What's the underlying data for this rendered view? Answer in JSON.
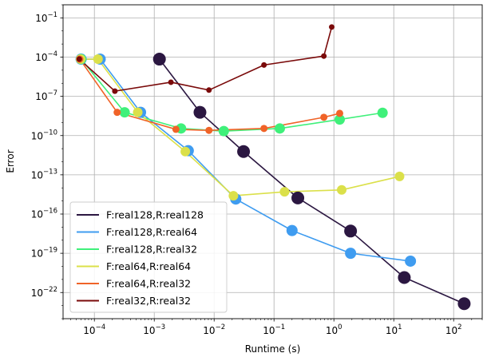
{
  "chart_data": {
    "type": "line",
    "xlabel": "Runtime (s)",
    "ylabel": "Error",
    "xscale": "log",
    "yscale": "log",
    "xlim": [
      3e-05,
      300
    ],
    "ylim": [
      1e-24,
      1.0
    ],
    "grid": true,
    "legend_position": "lower-left",
    "x_ticks": [
      {
        "value": 0.0001,
        "mantissa": "10",
        "exp": "−4"
      },
      {
        "value": 0.001,
        "mantissa": "10",
        "exp": "−3"
      },
      {
        "value": 0.01,
        "mantissa": "10",
        "exp": "−2"
      },
      {
        "value": 0.1,
        "mantissa": "10",
        "exp": "−1"
      },
      {
        "value": 1,
        "mantissa": "10",
        "exp": "0"
      },
      {
        "value": 10,
        "mantissa": "10",
        "exp": "1"
      },
      {
        "value": 100,
        "mantissa": "10",
        "exp": "2"
      }
    ],
    "y_ticks": [
      {
        "value": 1e-22,
        "mantissa": "10",
        "exp": "−22"
      },
      {
        "value": 1e-19,
        "mantissa": "10",
        "exp": "−19"
      },
      {
        "value": 1e-16,
        "mantissa": "10",
        "exp": "−16"
      },
      {
        "value": 1e-13,
        "mantissa": "10",
        "exp": "−13"
      },
      {
        "value": 1e-10,
        "mantissa": "10",
        "exp": "−10"
      },
      {
        "value": 1e-07,
        "mantissa": "10",
        "exp": "−7"
      },
      {
        "value": 0.0001,
        "mantissa": "10",
        "exp": "−4"
      },
      {
        "value": 0.1,
        "mantissa": "10",
        "exp": "−1"
      }
    ],
    "series": [
      {
        "name": "F:real128,R:real128",
        "color": "#2b1741",
        "marker_size": 8,
        "points": [
          {
            "x": 0.00122,
            "y": 7e-05
          },
          {
            "x": 0.0058,
            "y": 6e-09
          },
          {
            "x": 0.031,
            "y": 6e-12
          },
          {
            "x": 0.25,
            "y": 1.7e-15
          },
          {
            "x": 1.9,
            "y": 5e-18
          },
          {
            "x": 15,
            "y": 1.4e-21
          },
          {
            "x": 150,
            "y": 1.4e-23
          }
        ]
      },
      {
        "name": "F:real128,R:real64",
        "color": "#3f9cf0",
        "marker_size": 7,
        "points": [
          {
            "x": 6e-05,
            "y": 7e-05
          },
          {
            "x": 0.000125,
            "y": 7e-05
          },
          {
            "x": 0.00059,
            "y": 6e-09
          },
          {
            "x": 0.0037,
            "y": 7e-12
          },
          {
            "x": 0.023,
            "y": 1.4e-15
          },
          {
            "x": 0.2,
            "y": 5.5e-18
          },
          {
            "x": 1.9,
            "y": 1e-19
          },
          {
            "x": 19,
            "y": 2.5e-20
          }
        ]
      },
      {
        "name": "F:real128,R:real32",
        "color": "#3ff07a",
        "marker_size": 6.5,
        "points": [
          {
            "x": 6e-05,
            "y": 7e-05
          },
          {
            "x": 0.00032,
            "y": 6e-09
          },
          {
            "x": 0.0028,
            "y": 3.5e-10
          },
          {
            "x": 0.0145,
            "y": 2.2e-10
          },
          {
            "x": 0.125,
            "y": 3.5e-10
          },
          {
            "x": 1.25,
            "y": 1.7e-09
          },
          {
            "x": 6.5,
            "y": 5.5e-09
          }
        ]
      },
      {
        "name": "F:real64,R:real64",
        "color": "#dbe04a",
        "marker_size": 6,
        "points": [
          {
            "x": 5.9e-05,
            "y": 7e-05
          },
          {
            "x": 0.000115,
            "y": 7e-05
          },
          {
            "x": 0.00053,
            "y": 6e-09
          },
          {
            "x": 0.0033,
            "y": 6e-12
          },
          {
            "x": 0.021,
            "y": 2.5e-15
          },
          {
            "x": 0.15,
            "y": 5e-15
          },
          {
            "x": 1.35,
            "y": 7e-15
          },
          {
            "x": 12.5,
            "y": 7.5e-14
          }
        ]
      },
      {
        "name": "F:real64,R:real32",
        "color": "#f06328",
        "marker_size": 4.5,
        "points": [
          {
            "x": 5.7e-05,
            "y": 7e-05
          },
          {
            "x": 0.00024,
            "y": 6e-09
          },
          {
            "x": 0.0023,
            "y": 3e-10
          },
          {
            "x": 0.0082,
            "y": 2.5e-10
          },
          {
            "x": 0.068,
            "y": 3.5e-10
          },
          {
            "x": 0.68,
            "y": 2.5e-09
          },
          {
            "x": 1.25,
            "y": 5e-09
          }
        ]
      },
      {
        "name": "F:real32,R:real32",
        "color": "#7a0a0a",
        "marker_size": 3.5,
        "points": [
          {
            "x": 5.6e-05,
            "y": 7e-05
          },
          {
            "x": 0.00022,
            "y": 2.5e-07
          },
          {
            "x": 0.0019,
            "y": 1.2e-06
          },
          {
            "x": 0.0082,
            "y": 3e-07
          },
          {
            "x": 0.068,
            "y": 2.5e-05
          },
          {
            "x": 0.68,
            "y": 0.00012
          },
          {
            "x": 0.92,
            "y": 0.02
          }
        ]
      }
    ]
  }
}
